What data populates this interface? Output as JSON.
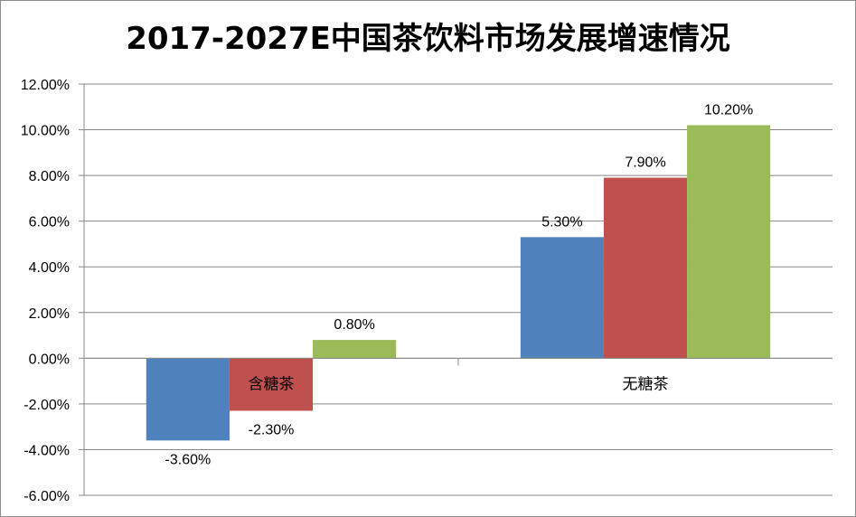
{
  "chart_data": {
    "type": "bar",
    "title": "2017-2027E中国茶饮料市场发展增速情况",
    "categories": [
      "含糖茶",
      "无糖茶"
    ],
    "series": [
      {
        "values": [
          -3.6,
          5.3
        ],
        "labels": [
          "-3.60%",
          "5.30%"
        ],
        "color": "#4f81bd"
      },
      {
        "values": [
          -2.3,
          7.9
        ],
        "labels": [
          "-2.30%",
          "7.90%"
        ],
        "color": "#c0504d"
      },
      {
        "values": [
          0.8,
          10.2
        ],
        "labels": [
          "0.80%",
          "10.20%"
        ],
        "color": "#9bbb59"
      }
    ],
    "ylim": [
      -6,
      12
    ],
    "yticks": [
      12,
      10,
      8,
      6,
      4,
      2,
      0,
      -2,
      -4,
      -6
    ],
    "ytick_labels": [
      "12.00%",
      "10.00%",
      "8.00%",
      "6.00%",
      "4.00%",
      "2.00%",
      "0.00%",
      "-2.00%",
      "-4.00%",
      "-6.00%"
    ],
    "grid": true,
    "legend": "none",
    "xlabel": "",
    "ylabel": ""
  }
}
